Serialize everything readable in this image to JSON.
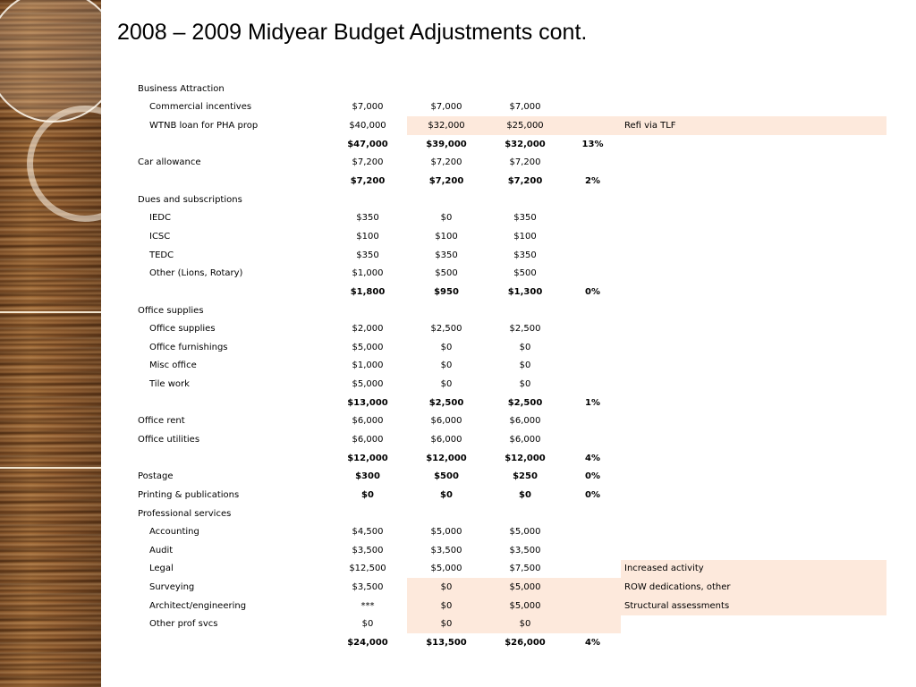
{
  "slide": {
    "title": "2008 – 2009 Midyear Budget Adjustments cont."
  },
  "rows": [
    {
      "label": "Business Attraction",
      "indent": false,
      "v1": "",
      "v2": "",
      "v3": "",
      "pct": "",
      "note": "",
      "bold": false,
      "hl": []
    },
    {
      "label": "Commercial incentives",
      "indent": true,
      "v1": "$7,000",
      "v2": "$7,000",
      "v3": "$7,000",
      "pct": "",
      "note": "",
      "bold": false,
      "hl": []
    },
    {
      "label": "WTNB loan for PHA prop",
      "indent": true,
      "v1": "$40,000",
      "v2": "$32,000",
      "v3": "$25,000",
      "pct": "",
      "note": "Refi via TLF",
      "bold": false,
      "hl": [
        "v2",
        "v3",
        "pct",
        "note"
      ]
    },
    {
      "label": "",
      "indent": false,
      "v1": "$47,000",
      "v2": "$39,000",
      "v3": "$32,000",
      "pct": "13%",
      "note": "",
      "bold": true,
      "hl": []
    },
    {
      "label": "Car allowance",
      "indent": false,
      "v1": "$7,200",
      "v2": "$7,200",
      "v3": "$7,200",
      "pct": "",
      "note": "",
      "bold": false,
      "hl": []
    },
    {
      "label": "",
      "indent": false,
      "v1": "$7,200",
      "v2": "$7,200",
      "v3": "$7,200",
      "pct": "2%",
      "note": "",
      "bold": true,
      "hl": []
    },
    {
      "label": "Dues and subscriptions",
      "indent": false,
      "v1": "",
      "v2": "",
      "v3": "",
      "pct": "",
      "note": "",
      "bold": false,
      "hl": []
    },
    {
      "label": "IEDC",
      "indent": true,
      "v1": "$350",
      "v2": "$0",
      "v3": "$350",
      "pct": "",
      "note": "",
      "bold": false,
      "hl": []
    },
    {
      "label": "ICSC",
      "indent": true,
      "v1": "$100",
      "v2": "$100",
      "v3": "$100",
      "pct": "",
      "note": "",
      "bold": false,
      "hl": []
    },
    {
      "label": "TEDC",
      "indent": true,
      "v1": "$350",
      "v2": "$350",
      "v3": "$350",
      "pct": "",
      "note": "",
      "bold": false,
      "hl": []
    },
    {
      "label": "Other (Lions, Rotary)",
      "indent": true,
      "v1": "$1,000",
      "v2": "$500",
      "v3": "$500",
      "pct": "",
      "note": "",
      "bold": false,
      "hl": []
    },
    {
      "label": "",
      "indent": false,
      "v1": "$1,800",
      "v2": "$950",
      "v3": "$1,300",
      "pct": "0%",
      "note": "",
      "bold": true,
      "hl": []
    },
    {
      "label": "Office supplies",
      "indent": false,
      "v1": "",
      "v2": "",
      "v3": "",
      "pct": "",
      "note": "",
      "bold": false,
      "hl": []
    },
    {
      "label": "Office supplies",
      "indent": true,
      "v1": "$2,000",
      "v2": "$2,500",
      "v3": "$2,500",
      "pct": "",
      "note": "",
      "bold": false,
      "hl": []
    },
    {
      "label": "Office furnishings",
      "indent": true,
      "v1": "$5,000",
      "v2": "$0",
      "v3": "$0",
      "pct": "",
      "note": "",
      "bold": false,
      "hl": []
    },
    {
      "label": "Misc office",
      "indent": true,
      "v1": "$1,000",
      "v2": "$0",
      "v3": "$0",
      "pct": "",
      "note": "",
      "bold": false,
      "hl": []
    },
    {
      "label": "Tile work",
      "indent": true,
      "v1": "$5,000",
      "v2": "$0",
      "v3": "$0",
      "pct": "",
      "note": "",
      "bold": false,
      "hl": []
    },
    {
      "label": "",
      "indent": false,
      "v1": "$13,000",
      "v2": "$2,500",
      "v3": "$2,500",
      "pct": "1%",
      "note": "",
      "bold": true,
      "hl": []
    },
    {
      "label": "Office rent",
      "indent": false,
      "v1": "$6,000",
      "v2": "$6,000",
      "v3": "$6,000",
      "pct": "",
      "note": "",
      "bold": false,
      "hl": []
    },
    {
      "label": "Office utilities",
      "indent": false,
      "v1": "$6,000",
      "v2": "$6,000",
      "v3": "$6,000",
      "pct": "",
      "note": "",
      "bold": false,
      "hl": []
    },
    {
      "label": "",
      "indent": false,
      "v1": "$12,000",
      "v2": "$12,000",
      "v3": "$12,000",
      "pct": "4%",
      "note": "",
      "bold": true,
      "hl": []
    },
    {
      "label": "Postage",
      "indent": false,
      "v1": "$300",
      "v2": "$500",
      "v3": "$250",
      "pct": "0%",
      "note": "",
      "bold": true,
      "labelBold": false,
      "hl": []
    },
    {
      "label": "Printing & publications",
      "indent": false,
      "v1": "$0",
      "v2": "$0",
      "v3": "$0",
      "pct": "0%",
      "note": "",
      "bold": true,
      "labelBold": false,
      "hl": []
    },
    {
      "label": "Professional services",
      "indent": false,
      "v1": "",
      "v2": "",
      "v3": "",
      "pct": "",
      "note": "",
      "bold": false,
      "hl": []
    },
    {
      "label": "Accounting",
      "indent": true,
      "v1": "$4,500",
      "v2": "$5,000",
      "v3": "$5,000",
      "pct": "",
      "note": "",
      "bold": false,
      "hl": []
    },
    {
      "label": "Audit",
      "indent": true,
      "v1": "$3,500",
      "v2": "$3,500",
      "v3": "$3,500",
      "pct": "",
      "note": "",
      "bold": false,
      "hl": []
    },
    {
      "label": "Legal",
      "indent": true,
      "v1": "$12,500",
      "v2": "$5,000",
      "v3": "$7,500",
      "pct": "",
      "note": "Increased activity",
      "bold": false,
      "hl": [
        "note"
      ]
    },
    {
      "label": "Surveying",
      "indent": true,
      "v1": "$3,500",
      "v2": "$0",
      "v3": "$5,000",
      "pct": "",
      "note": "ROW dedications, other",
      "bold": false,
      "hl": [
        "v2",
        "v3",
        "pct",
        "note"
      ]
    },
    {
      "label": "Architect/engineering",
      "indent": true,
      "v1": "***",
      "v2": "$0",
      "v3": "$5,000",
      "pct": "",
      "note": "Structural assessments",
      "bold": false,
      "hl": [
        "v2",
        "v3",
        "pct",
        "note"
      ]
    },
    {
      "label": "Other prof svcs",
      "indent": true,
      "v1": "$0",
      "v2": "$0",
      "v3": "$0",
      "pct": "",
      "note": "",
      "bold": false,
      "hl": [
        "v2",
        "v3",
        "pct"
      ]
    },
    {
      "label": "",
      "indent": false,
      "v1": "$24,000",
      "v2": "$13,500",
      "v3": "$26,000",
      "pct": "4%",
      "note": "",
      "bold": true,
      "hl": []
    }
  ],
  "colors": {
    "highlight": "#fde9dc",
    "wood_dark": "#6e4320",
    "wood_light": "#9b6532"
  }
}
